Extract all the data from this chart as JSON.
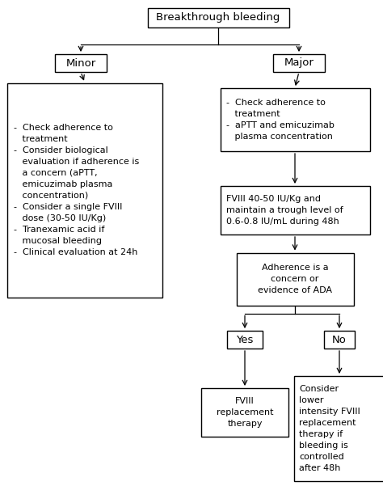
{
  "title": "Breakthrough bleeding",
  "minor_label": "Minor",
  "major_label": "Major",
  "minor_box_text": "-  Check adherence to\n   treatment\n-  Consider biological\n   evaluation if adherence is\n   a concern (aPTT,\n   emicuzimab plasma\n   concentration)\n-  Consider a single FVIII\n   dose (30-50 IU/Kg)\n-  Tranexamic acid if\n   mucosal bleeding\n-  Clinical evaluation at 24h",
  "major_box1_text": "-  Check adherence to\n   treatment\n-  aPTT and emicuzimab\n   plasma concentration",
  "major_box2_text": "FVIII 40-50 IU/Kg and\nmaintain a trough level of\n0.6-0.8 IU/mL during 48h",
  "major_box3_text": "Adherence is a\nconcern or\nevidence of ADA",
  "yes_label": "Yes",
  "no_label": "No",
  "yes_box_text": "FVIII\nreplacement\ntherapy",
  "no_box_text": "Consider\nlower\nintensity FVIII\nreplacement\ntherapy if\nbleeding is\ncontrolled\nafter 48h",
  "bg_color": "#ffffff",
  "box_edge_color": "#000000",
  "text_color": "#000000",
  "arrow_color": "#000000",
  "fontsize": 8.0,
  "label_fontsize": 9.5
}
